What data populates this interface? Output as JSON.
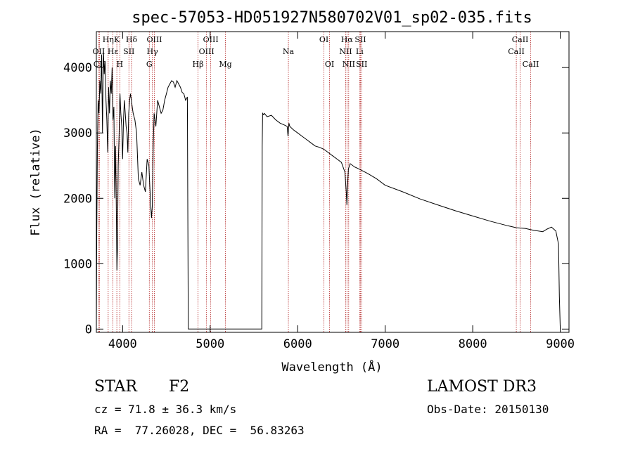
{
  "chart_data": {
    "type": "line",
    "title": "spec-57053-HD051927N580702V01_sp02-035.fits",
    "xlabel": "Wavelength (Å)",
    "ylabel": "Flux (relative)",
    "xlim": [
      3700,
      9100
    ],
    "ylim": [
      -50,
      4550
    ],
    "xticks": [
      4000,
      5000,
      6000,
      7000,
      8000,
      9000
    ],
    "yticks": [
      0,
      1000,
      2000,
      3000,
      4000
    ],
    "grid": false,
    "series": [
      {
        "x": [
          3700,
          3705,
          3712,
          3720,
          3730,
          3740,
          3750,
          3760,
          3770,
          3780,
          3790,
          3800,
          3810,
          3820,
          3830,
          3840,
          3850,
          3860,
          3870,
          3880,
          3890,
          3900,
          3910,
          3920,
          3930,
          3935,
          3940,
          3950,
          3960,
          3965,
          3970,
          3980,
          3990,
          4000,
          4010,
          4020,
          4030,
          4040,
          4050,
          4060,
          4070,
          4080,
          4090,
          4100,
          4110,
          4120,
          4140,
          4160,
          4180,
          4200,
          4220,
          4240,
          4260,
          4280,
          4300,
          4320,
          4330,
          4340,
          4350,
          4360,
          4380,
          4400,
          4420,
          4440,
          4460,
          4480,
          4500,
          4520,
          4540,
          4560,
          4580,
          4600,
          4620,
          4640,
          4660,
          4680,
          4700,
          4720,
          4740,
          4750,
          4755,
          4760,
          4762,
          4765,
          4770,
          4800,
          5000,
          5200,
          5400,
          5580,
          5590,
          5595,
          5600,
          5610,
          5620,
          5650,
          5700,
          5750,
          5800,
          5850,
          5880,
          5890,
          5895,
          5900,
          5910,
          5950,
          6000,
          6050,
          6100,
          6150,
          6200,
          6250,
          6300,
          6350,
          6400,
          6450,
          6500,
          6540,
          6555,
          6562,
          6570,
          6580,
          6600,
          6650,
          6700,
          6800,
          6900,
          7000,
          7200,
          7400,
          7600,
          7800,
          8000,
          8200,
          8400,
          8500,
          8600,
          8700,
          8800,
          8850,
          8900,
          8950,
          8980,
          8990,
          9000
        ],
        "values": [
          0,
          1500,
          2800,
          3500,
          3300,
          3800,
          3600,
          4200,
          3000,
          4300,
          3900,
          4100,
          3500,
          3200,
          2700,
          3700,
          3300,
          3800,
          3600,
          4000,
          3200,
          3400,
          2000,
          2800,
          1600,
          900,
          1200,
          2500,
          3000,
          3400,
          3600,
          3300,
          3100,
          2600,
          3200,
          3500,
          3300,
          3100,
          3000,
          2700,
          3300,
          3500,
          3600,
          3500,
          3400,
          3300,
          3200,
          3000,
          2300,
          2200,
          2400,
          2200,
          2100,
          2600,
          2500,
          1900,
          1700,
          1900,
          2800,
          3300,
          3100,
          3500,
          3400,
          3300,
          3350,
          3500,
          3600,
          3700,
          3750,
          3800,
          3780,
          3700,
          3800,
          3750,
          3700,
          3620,
          3600,
          3500,
          3550,
          0,
          0,
          0,
          0,
          0,
          0,
          0,
          0,
          0,
          0,
          0,
          0,
          2800,
          3300,
          3280,
          3300,
          3250,
          3270,
          3200,
          3150,
          3120,
          3100,
          2950,
          3050,
          3150,
          3100,
          3050,
          3000,
          2950,
          2900,
          2850,
          2800,
          2780,
          2750,
          2700,
          2650,
          2600,
          2550,
          2400,
          2100,
          1900,
          2200,
          2450,
          2530,
          2480,
          2450,
          2380,
          2300,
          2200,
          2100,
          1990,
          1900,
          1810,
          1730,
          1650,
          1580,
          1550,
          1540,
          1510,
          1490,
          1530,
          1560,
          1500,
          1300,
          500,
          0
        ]
      }
    ],
    "lines": [
      {
        "label": "Hη",
        "wl": 3835,
        "row": 0
      },
      {
        "label": "OII",
        "wl": 3727,
        "row": 1
      },
      {
        "label": "CII",
        "wl": 3735,
        "row": 2
      },
      {
        "label": "Hε",
        "wl": 3889,
        "row": 1
      },
      {
        "label": "K",
        "wl": 3934,
        "row": 0
      },
      {
        "label": "H",
        "wl": 3968,
        "row": 2
      },
      {
        "label": "SII",
        "wl": 4072,
        "row": 1
      },
      {
        "label": "Hδ",
        "wl": 4102,
        "row": 0
      },
      {
        "label": "Hγ",
        "wl": 4340,
        "row": 1
      },
      {
        "label": "G",
        "wl": 4305,
        "row": 2
      },
      {
        "label": "OIII",
        "wl": 4363,
        "row": 0
      },
      {
        "label": "Hβ",
        "wl": 4861,
        "row": 2
      },
      {
        "label": "OIII",
        "wl": 4959,
        "row": 1
      },
      {
        "label": "OIII",
        "wl": 5007,
        "row": 0
      },
      {
        "label": "Mg",
        "wl": 5175,
        "row": 2
      },
      {
        "label": "Na",
        "wl": 5894,
        "row": 1
      },
      {
        "label": "OI",
        "wl": 6300,
        "row": 0
      },
      {
        "label": "OI",
        "wl": 6364,
        "row": 2
      },
      {
        "label": "NII",
        "wl": 6548,
        "row": 1
      },
      {
        "label": "Hα",
        "wl": 6563,
        "row": 0
      },
      {
        "label": "NII",
        "wl": 6583,
        "row": 2
      },
      {
        "label": "SII",
        "wl": 6717,
        "row": 0
      },
      {
        "label": "Li",
        "wl": 6708,
        "row": 1
      },
      {
        "label": "SII",
        "wl": 6731,
        "row": 2
      },
      {
        "label": "CaII",
        "wl": 8498,
        "row": 1
      },
      {
        "label": "CaII",
        "wl": 8542,
        "row": 0
      },
      {
        "label": "CaII",
        "wl": 8662,
        "row": 2
      }
    ],
    "line_color": "#b22222"
  },
  "info": {
    "object_type": "STAR",
    "subclass": "F2",
    "survey": "LAMOST DR3",
    "cz": "cz = 71.8 ± 36.3 km/s",
    "obs_date": "Obs-Date: 20150130",
    "coords": "RA =  77.26028, DEC =  56.83263"
  }
}
